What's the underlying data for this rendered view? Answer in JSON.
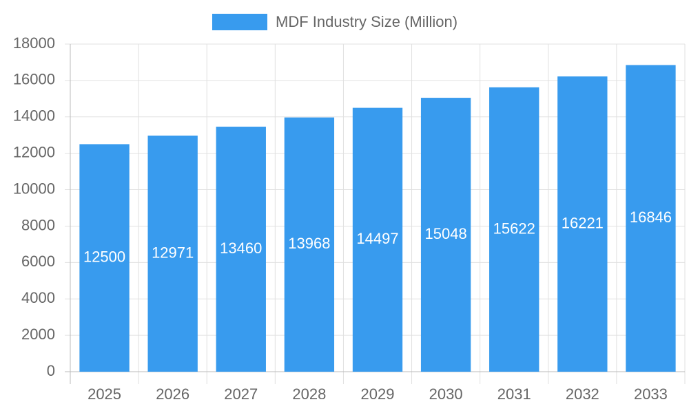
{
  "chart_data": {
    "type": "bar",
    "categories": [
      "2025",
      "2026",
      "2027",
      "2028",
      "2029",
      "2030",
      "2031",
      "2032",
      "2033"
    ],
    "series": [
      {
        "name": "MDF Industry Size (Million)",
        "color": "#389bee",
        "values": [
          12500,
          12971,
          13460,
          13968,
          14497,
          15048,
          15622,
          16221,
          16846
        ]
      }
    ],
    "ylim": [
      0,
      18000
    ],
    "yticks": [
      0,
      2000,
      4000,
      6000,
      8000,
      10000,
      12000,
      14000,
      16000,
      18000
    ],
    "grid": true,
    "legend": "top",
    "data_labels": true
  }
}
